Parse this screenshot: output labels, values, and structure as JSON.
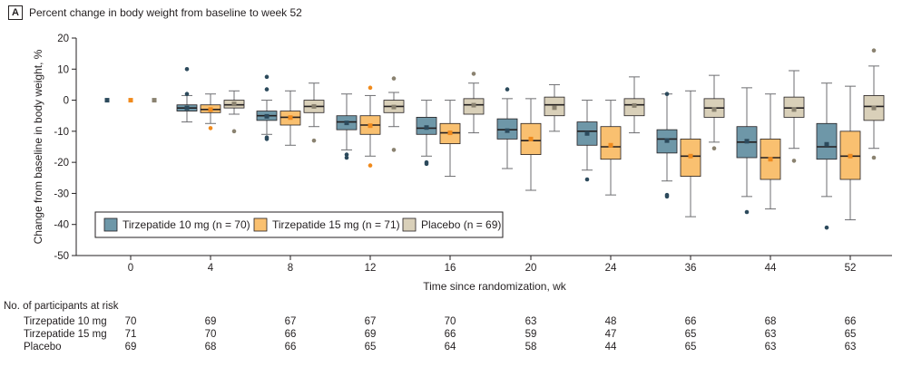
{
  "panel": {
    "letter": "A",
    "title": "Percent change in body weight from baseline to week 52"
  },
  "colors": {
    "tirzepatide_10": "#6e97a8",
    "tirzepatide_15": "#f9c070",
    "placebo": "#d9d0b9"
  },
  "chart_data": {
    "type": "box",
    "xlabel": "Time since randomization, wk",
    "ylabel": "Change from baseline in body weight, %",
    "ylim": [
      -50,
      20
    ],
    "yticks": [
      20,
      10,
      0,
      -10,
      -20,
      -30,
      -40,
      -50
    ],
    "categories": [
      "0",
      "4",
      "8",
      "12",
      "16",
      "20",
      "24",
      "36",
      "44",
      "52"
    ],
    "legend_position": "lower-left",
    "series": [
      {
        "name": "Tirzepatide 10 mg (n = 70)",
        "boxes": [
          {
            "q1": 0,
            "median": 0,
            "q3": 0,
            "lo": 0,
            "hi": 0,
            "mean": 0,
            "outliers": []
          },
          {
            "q1": -3.5,
            "median": -2.5,
            "q3": -1.5,
            "lo": -7,
            "hi": 1.5,
            "mean": -2.5,
            "outliers": [
              10,
              2
            ]
          },
          {
            "q1": -6.5,
            "median": -5,
            "q3": -3.5,
            "lo": -11,
            "hi": 0,
            "mean": -5.2,
            "outliers": [
              7.5,
              3.5,
              -12,
              -12.5
            ]
          },
          {
            "q1": -9.5,
            "median": -7,
            "q3": -5,
            "lo": -16,
            "hi": 2,
            "mean": -7.3,
            "outliers": [
              -17.5,
              -18.5
            ]
          },
          {
            "q1": -11,
            "median": -9,
            "q3": -5.5,
            "lo": -18,
            "hi": 0,
            "mean": -8.8,
            "outliers": [
              -20,
              -20.5
            ]
          },
          {
            "q1": -12.5,
            "median": -9.5,
            "q3": -6,
            "lo": -22,
            "hi": 0.5,
            "mean": -9.8,
            "outliers": [
              3.5
            ]
          },
          {
            "q1": -14.5,
            "median": -10,
            "q3": -7,
            "lo": -22.5,
            "hi": 0,
            "mean": -10.7,
            "outliers": [
              -25.5
            ]
          },
          {
            "q1": -17,
            "median": -12.5,
            "q3": -9.5,
            "lo": -26,
            "hi": 2,
            "mean": -13,
            "outliers": [
              2,
              -30.5,
              -31
            ]
          },
          {
            "q1": -18.5,
            "median": -13.5,
            "q3": -8.5,
            "lo": -31,
            "hi": 4,
            "mean": -13.2,
            "outliers": [
              -36
            ]
          },
          {
            "q1": -19,
            "median": -15,
            "q3": -7.5,
            "lo": -31,
            "hi": 5.5,
            "mean": -14.2,
            "outliers": [
              -41
            ]
          }
        ]
      },
      {
        "name": "Tirzepatide 15 mg (n = 71)",
        "boxes": [
          {
            "q1": 0,
            "median": 0,
            "q3": 0,
            "lo": 0,
            "hi": 0,
            "mean": 0,
            "outliers": []
          },
          {
            "q1": -4,
            "median": -3,
            "q3": -1.5,
            "lo": -7.5,
            "hi": 2,
            "mean": -3,
            "outliers": [
              -9
            ]
          },
          {
            "q1": -8,
            "median": -5.5,
            "q3": -3.5,
            "lo": -14.5,
            "hi": 3,
            "mean": -5.6,
            "outliers": []
          },
          {
            "q1": -11,
            "median": -8,
            "q3": -5,
            "lo": -18,
            "hi": 1.5,
            "mean": -8.2,
            "outliers": [
              4,
              -21
            ]
          },
          {
            "q1": -14,
            "median": -10.5,
            "q3": -7.5,
            "lo": -24.5,
            "hi": 0,
            "mean": -10.5,
            "outliers": []
          },
          {
            "q1": -17.5,
            "median": -13,
            "q3": -7.5,
            "lo": -29,
            "hi": 0.5,
            "mean": -12.5,
            "outliers": []
          },
          {
            "q1": -19,
            "median": -15,
            "q3": -8.5,
            "lo": -30.5,
            "hi": 0,
            "mean": -14.5,
            "outliers": []
          },
          {
            "q1": -24.5,
            "median": -18,
            "q3": -12.5,
            "lo": -37.5,
            "hi": 3,
            "mean": -18,
            "outliers": []
          },
          {
            "q1": -25.5,
            "median": -18.5,
            "q3": -12.5,
            "lo": -35,
            "hi": 2,
            "mean": -19,
            "outliers": []
          },
          {
            "q1": -25.5,
            "median": -18,
            "q3": -10,
            "lo": -38.5,
            "hi": 4.5,
            "mean": -18,
            "outliers": []
          }
        ]
      },
      {
        "name": "Placebo (n = 69)",
        "boxes": [
          {
            "q1": 0,
            "median": 0,
            "q3": 0,
            "lo": 0,
            "hi": 0,
            "mean": 0,
            "outliers": []
          },
          {
            "q1": -2.5,
            "median": -1.5,
            "q3": 0,
            "lo": -4.5,
            "hi": 3,
            "mean": -1.2,
            "outliers": [
              -10
            ]
          },
          {
            "q1": -4,
            "median": -2,
            "q3": 0,
            "lo": -8.5,
            "hi": 5.5,
            "mean": -2,
            "outliers": [
              -13
            ]
          },
          {
            "q1": -4,
            "median": -2,
            "q3": 0,
            "lo": -8.5,
            "hi": 2.5,
            "mean": -2.2,
            "outliers": [
              7,
              -16
            ]
          },
          {
            "q1": -4.5,
            "median": -1.5,
            "q3": 0.5,
            "lo": -10.5,
            "hi": 5.5,
            "mean": -1.6,
            "outliers": [
              8.5
            ]
          },
          {
            "q1": -5,
            "median": -1.5,
            "q3": 1,
            "lo": -10,
            "hi": 5,
            "mean": -2.4,
            "outliers": []
          },
          {
            "q1": -5,
            "median": -1.5,
            "q3": 0.5,
            "lo": -10.5,
            "hi": 7.5,
            "mean": -1.7,
            "outliers": []
          },
          {
            "q1": -5.5,
            "median": -2.5,
            "q3": 0.5,
            "lo": -13.5,
            "hi": 8,
            "mean": -3,
            "outliers": [
              -15.5
            ]
          },
          {
            "q1": -5.5,
            "median": -2.5,
            "q3": 1,
            "lo": -15.5,
            "hi": 9.5,
            "mean": -3,
            "outliers": [
              -19.5
            ]
          },
          {
            "q1": -6.5,
            "median": -2,
            "q3": 1.5,
            "lo": -15.5,
            "hi": 11,
            "mean": -2.5,
            "outliers": [
              16,
              -18.5
            ]
          }
        ]
      }
    ]
  },
  "risk_table": {
    "title": "No. of participants at risk",
    "rows": [
      {
        "label": "Tirzepatide 10 mg",
        "values": [
          "70",
          "69",
          "67",
          "67",
          "70",
          "63",
          "48",
          "66",
          "68",
          "66"
        ]
      },
      {
        "label": "Tirzepatide 15 mg",
        "values": [
          "71",
          "70",
          "66",
          "69",
          "66",
          "59",
          "47",
          "65",
          "63",
          "65"
        ]
      },
      {
        "label": "Placebo",
        "values": [
          "69",
          "68",
          "66",
          "65",
          "64",
          "58",
          "44",
          "65",
          "63",
          "63"
        ]
      }
    ]
  }
}
